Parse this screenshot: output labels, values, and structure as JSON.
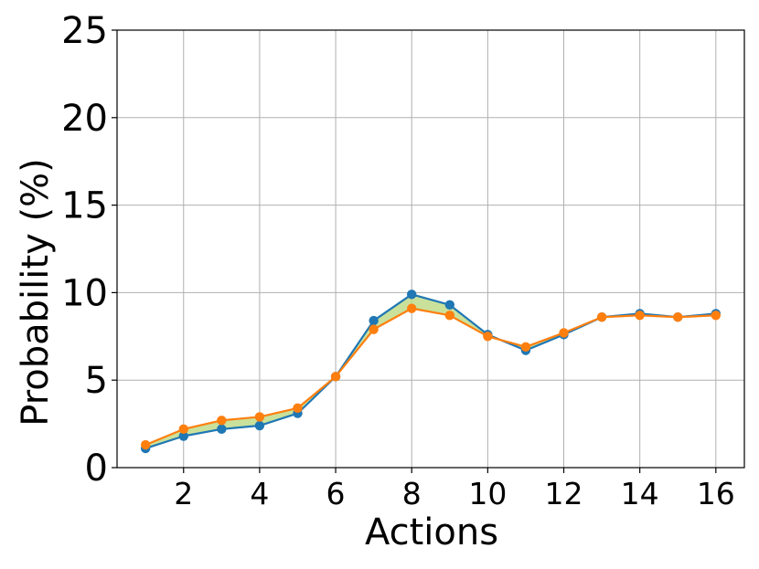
{
  "chart_data": {
    "type": "line",
    "title": "",
    "xlabel": "Actions",
    "ylabel": "Probability (%)",
    "xlim": [
      0.25,
      16.75
    ],
    "ylim": [
      0,
      25
    ],
    "x_ticks": [
      2,
      4,
      6,
      8,
      10,
      12,
      14,
      16
    ],
    "y_ticks": [
      0,
      5,
      10,
      15,
      20,
      25
    ],
    "grid": true,
    "legend": "none",
    "x": [
      1,
      2,
      3,
      4,
      5,
      6,
      7,
      8,
      9,
      10,
      11,
      12,
      13,
      14,
      15,
      16
    ],
    "series": [
      {
        "color": "#1f77b4",
        "values": [
          1.1,
          1.8,
          2.2,
          2.4,
          3.1,
          5.2,
          8.4,
          9.9,
          9.3,
          7.6,
          6.7,
          7.6,
          8.6,
          8.8,
          8.6,
          8.8
        ]
      },
      {
        "color": "#ff7f0e",
        "values": [
          1.3,
          2.2,
          2.7,
          2.9,
          3.4,
          5.2,
          7.9,
          9.1,
          8.7,
          7.5,
          6.9,
          7.7,
          8.6,
          8.7,
          8.6,
          8.7
        ]
      }
    ],
    "fill_between": {
      "color": "#bfdc8a",
      "opacity": 0.85
    }
  }
}
